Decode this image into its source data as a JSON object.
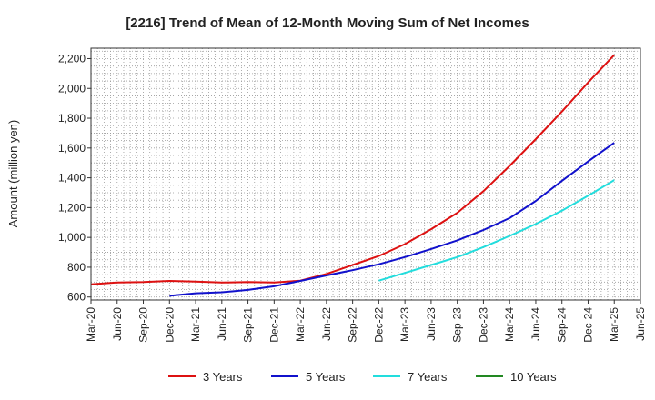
{
  "chart_data": {
    "type": "line",
    "title": "[2216]  Trend of Mean of 12-Month Moving Sum of Net Incomes",
    "xlabel": "",
    "ylabel": "Amount (million yen)",
    "ylim": [
      580,
      2270
    ],
    "yticks": [
      600,
      800,
      1000,
      1200,
      1400,
      1600,
      1800,
      2000,
      2200
    ],
    "ytick_labels": [
      "600",
      "800",
      "1,000",
      "1,200",
      "1,400",
      "1,600",
      "1,800",
      "2,000",
      "2,200"
    ],
    "x_tick_labels": [
      "Mar-20",
      "Jun-20",
      "Sep-20",
      "Dec-20",
      "Mar-21",
      "Jun-21",
      "Sep-21",
      "Dec-21",
      "Mar-22",
      "Jun-22",
      "Sep-22",
      "Dec-22",
      "Mar-23",
      "Jun-23",
      "Sep-23",
      "Dec-23",
      "Mar-24",
      "Jun-24",
      "Sep-24",
      "Dec-24",
      "Mar-25",
      "Jun-25"
    ],
    "grid": true,
    "legend_position": "bottom",
    "series": [
      {
        "name": "3 Years",
        "color": "#dd1111",
        "points": [
          [
            "Mar-20",
            685
          ],
          [
            "Jun-20",
            698
          ],
          [
            "Sep-20",
            700
          ],
          [
            "Dec-20",
            708
          ],
          [
            "Mar-21",
            703
          ],
          [
            "Jun-21",
            697
          ],
          [
            "Sep-21",
            701
          ],
          [
            "Dec-21",
            697
          ],
          [
            "Mar-22",
            710
          ],
          [
            "Jun-22",
            755
          ],
          [
            "Sep-22",
            815
          ],
          [
            "Dec-22",
            875
          ],
          [
            "Mar-23",
            955
          ],
          [
            "Jun-23",
            1055
          ],
          [
            "Sep-23",
            1165
          ],
          [
            "Dec-23",
            1310
          ],
          [
            "Mar-24",
            1480
          ],
          [
            "Jun-24",
            1660
          ],
          [
            "Sep-24",
            1845
          ],
          [
            "Dec-24",
            2040
          ],
          [
            "Mar-25",
            2225
          ]
        ]
      },
      {
        "name": "5 Years",
        "color": "#1111cc",
        "points": [
          [
            "Dec-20",
            608
          ],
          [
            "Mar-21",
            625
          ],
          [
            "Jun-21",
            632
          ],
          [
            "Sep-21",
            648
          ],
          [
            "Dec-21",
            672
          ],
          [
            "Mar-22",
            708
          ],
          [
            "Jun-22",
            745
          ],
          [
            "Sep-22",
            780
          ],
          [
            "Dec-22",
            820
          ],
          [
            "Mar-23",
            868
          ],
          [
            "Jun-23",
            922
          ],
          [
            "Sep-23",
            980
          ],
          [
            "Dec-23",
            1050
          ],
          [
            "Mar-24",
            1130
          ],
          [
            "Jun-24",
            1245
          ],
          [
            "Sep-24",
            1380
          ],
          [
            "Dec-24",
            1510
          ],
          [
            "Mar-25",
            1635
          ]
        ]
      },
      {
        "name": "7 Years",
        "color": "#22dddd",
        "points": [
          [
            "Dec-22",
            710
          ],
          [
            "Mar-23",
            762
          ],
          [
            "Jun-23",
            815
          ],
          [
            "Sep-23",
            868
          ],
          [
            "Dec-23",
            935
          ],
          [
            "Mar-24",
            1010
          ],
          [
            "Jun-24",
            1090
          ],
          [
            "Sep-24",
            1180
          ],
          [
            "Dec-24",
            1280
          ],
          [
            "Mar-25",
            1385
          ]
        ]
      },
      {
        "name": "10 Years",
        "color": "#228822",
        "points": []
      }
    ]
  }
}
